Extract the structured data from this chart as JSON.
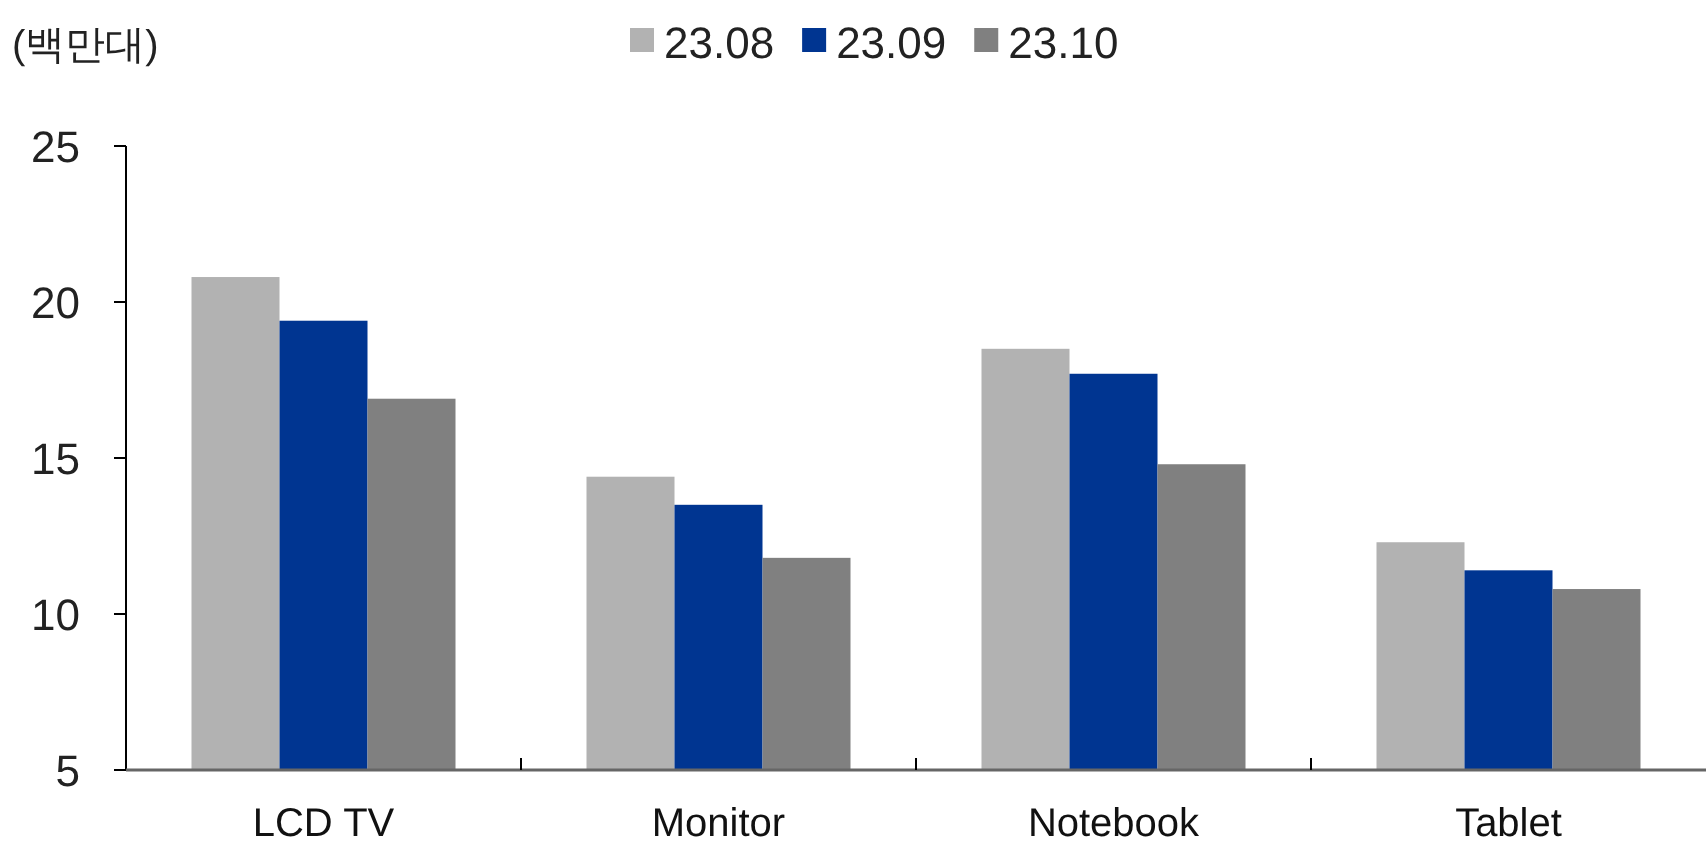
{
  "chart_data": {
    "type": "bar",
    "ylabel": "(백만대)",
    "categories": [
      "LCD TV",
      "Monitor",
      "Notebook",
      "Tablet"
    ],
    "series": [
      {
        "name": "23.08",
        "color": "#b2b2b2",
        "values": [
          20.8,
          14.4,
          18.5,
          12.3
        ]
      },
      {
        "name": "23.09",
        "color": "#003591",
        "values": [
          19.4,
          13.5,
          17.7,
          11.4
        ]
      },
      {
        "name": "23.10",
        "color": "#808080",
        "values": [
          16.9,
          11.8,
          14.8,
          10.8
        ]
      }
    ],
    "ylim": [
      5,
      25
    ],
    "yticks": [
      5,
      10,
      15,
      20,
      25
    ],
    "grid": false,
    "legend": "top"
  }
}
